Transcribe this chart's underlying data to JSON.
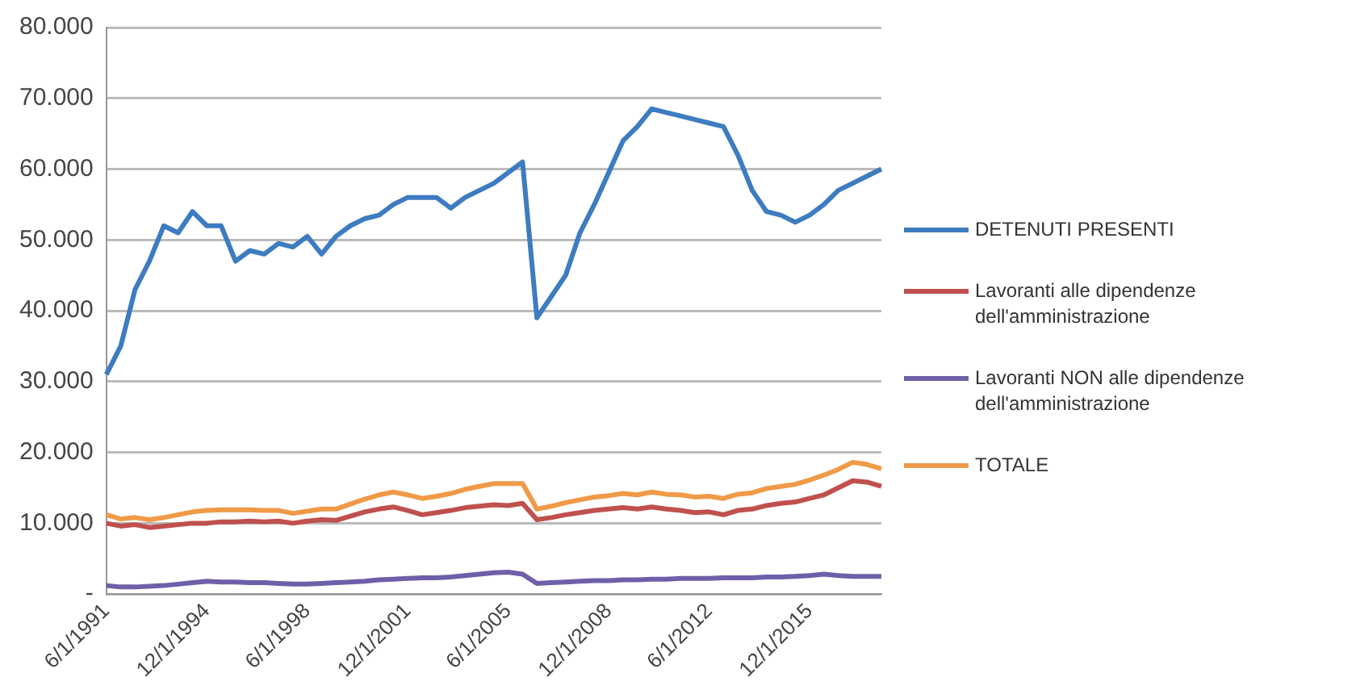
{
  "chart_data": {
    "type": "line",
    "categories": [
      "6/1/1991",
      null,
      null,
      null,
      null,
      null,
      null,
      "12/1/1994",
      null,
      null,
      null,
      null,
      null,
      null,
      "6/1/1998",
      null,
      null,
      null,
      null,
      null,
      null,
      "12/1/2001",
      null,
      null,
      null,
      null,
      null,
      null,
      "6/1/2005",
      null,
      null,
      null,
      null,
      null,
      null,
      "12/1/2008",
      null,
      null,
      null,
      null,
      null,
      null,
      "6/1/2012",
      null,
      null,
      null,
      null,
      null,
      null,
      "12/1/2015",
      null,
      null,
      null,
      null,
      null
    ],
    "series": [
      {
        "name": "DETENUTI PRESENTI",
        "color": "#3d7cc0",
        "values": [
          31000,
          35000,
          43000,
          47000,
          52000,
          51000,
          54000,
          52000,
          52000,
          47000,
          48500,
          48000,
          49500,
          49000,
          50500,
          48000,
          50500,
          52000,
          53000,
          53500,
          55000,
          56000,
          56000,
          56000,
          54500,
          56000,
          57000,
          58000,
          59500,
          61000,
          39000,
          42000,
          45000,
          51000,
          55000,
          59500,
          64000,
          66000,
          68500,
          68000,
          67500,
          67000,
          66500,
          66000,
          62000,
          57000,
          54000,
          53500,
          52500,
          53500,
          55000,
          57000,
          58000,
          59000,
          60000
        ]
      },
      {
        "name": "Lavoranti alle dipendenze dell'amministrazione",
        "color": "#c0504d",
        "values": [
          10000,
          9600,
          9800,
          9400,
          9600,
          9800,
          10000,
          10000,
          10200,
          10200,
          10300,
          10200,
          10300,
          10000,
          10300,
          10500,
          10400,
          11000,
          11600,
          12000,
          12300,
          11800,
          11200,
          11500,
          11800,
          12200,
          12400,
          12600,
          12500,
          12800,
          10500,
          10800,
          11200,
          11500,
          11800,
          12000,
          12200,
          12000,
          12300,
          12000,
          11800,
          11500,
          11600,
          11200,
          11800,
          12000,
          12500,
          12800,
          13000,
          13500,
          14000,
          15000,
          16000,
          15800,
          15200
        ]
      },
      {
        "name": "Lavoranti NON alle dipendenze dell'amministrazione",
        "color": "#6f5fa8",
        "values": [
          1200,
          1000,
          1000,
          1100,
          1200,
          1400,
          1600,
          1800,
          1700,
          1700,
          1600,
          1600,
          1500,
          1400,
          1400,
          1500,
          1600,
          1700,
          1800,
          2000,
          2100,
          2200,
          2300,
          2300,
          2400,
          2600,
          2800,
          3000,
          3100,
          2800,
          1500,
          1600,
          1700,
          1800,
          1900,
          1900,
          2000,
          2000,
          2100,
          2100,
          2200,
          2200,
          2200,
          2300,
          2300,
          2300,
          2400,
          2400,
          2500,
          2600,
          2800,
          2600,
          2500,
          2500,
          2500
        ]
      },
      {
        "name": "TOTALE",
        "color": "#f09a48",
        "values": [
          11200,
          10600,
          10800,
          10500,
          10800,
          11200,
          11600,
          11800,
          11900,
          11900,
          11900,
          11800,
          11800,
          11400,
          11700,
          12000,
          12000,
          12700,
          13400,
          14000,
          14400,
          14000,
          13500,
          13800,
          14200,
          14800,
          15200,
          15600,
          15600,
          15600,
          12000,
          12400,
          12900,
          13300,
          13700,
          13900,
          14200,
          14000,
          14400,
          14100,
          14000,
          13700,
          13800,
          13500,
          14100,
          14300,
          14900,
          15200,
          15500,
          16100,
          16800,
          17600,
          18600,
          18300,
          17700
        ]
      }
    ],
    "ylim": [
      0,
      80000
    ],
    "yticks": [
      {
        "value": 0,
        "label": "-"
      },
      {
        "value": 10000,
        "label": "10.000"
      },
      {
        "value": 20000,
        "label": "20.000"
      },
      {
        "value": 30000,
        "label": "30.000"
      },
      {
        "value": 40000,
        "label": "40.000"
      },
      {
        "value": 50000,
        "label": "50.000"
      },
      {
        "value": 60000,
        "label": "60.000"
      },
      {
        "value": 70000,
        "label": "70.000"
      },
      {
        "value": 80000,
        "label": "80.000"
      }
    ],
    "grid": "y",
    "legend": "right",
    "marker": "none",
    "line_style": "solid"
  }
}
